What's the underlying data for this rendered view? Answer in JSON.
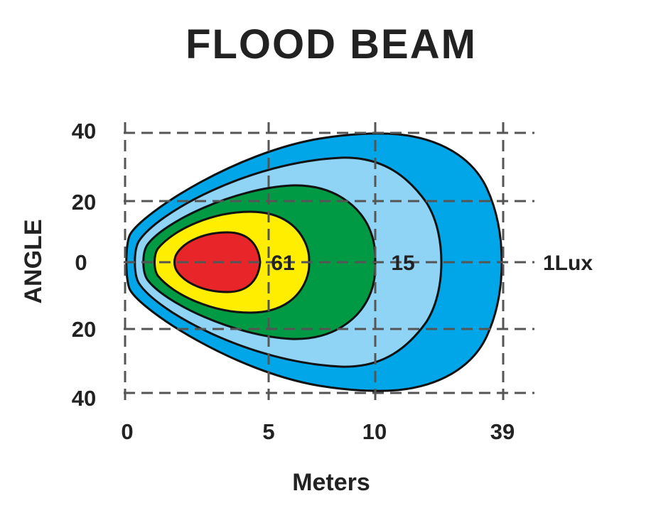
{
  "chart_data": {
    "type": "area",
    "title": "FLOOD BEAM",
    "xlabel": "Meters",
    "ylabel": "ANGLE",
    "x_ticks": [
      "0",
      "5",
      "10",
      "39"
    ],
    "y_ticks": [
      "40",
      "20",
      "0",
      "20",
      "40"
    ],
    "grid": true,
    "zones": [
      {
        "label": "1Lux",
        "color": "#00a6e8",
        "reach": "39",
        "half_angle": 40
      },
      {
        "label": "",
        "color": "#8fd3f5",
        "reach": "",
        "half_angle": 32
      },
      {
        "label": "15",
        "color": "#009a44",
        "reach": "10",
        "half_angle": 24
      },
      {
        "label": "",
        "color": "#ffee00",
        "reach": "",
        "half_angle": 15
      },
      {
        "label": "61",
        "color": "#e8262a",
        "reach": "5",
        "half_angle": 7
      }
    ]
  }
}
